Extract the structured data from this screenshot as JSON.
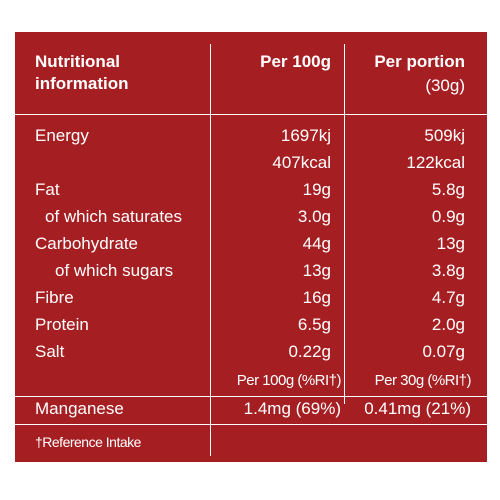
{
  "header": {
    "col1_line1": "Nutritional",
    "col1_line2": "information",
    "col2": "Per 100g",
    "col3_line1": "Per portion",
    "col3_line2": "(30g)"
  },
  "rows": [
    {
      "label": "Energy",
      "per100": "1697kj",
      "portion": "509kj"
    },
    {
      "label": "",
      "per100": "407kcal",
      "portion": "122kcal"
    },
    {
      "label": "Fat",
      "per100": "19g",
      "portion": "5.8g"
    },
    {
      "label": "of which saturates",
      "per100": "3.0g",
      "portion": "0.9g"
    },
    {
      "label": "Carbohydrate",
      "per100": "44g",
      "portion": "13g"
    },
    {
      "label": "of which sugars",
      "per100": "13g",
      "portion": "3.8g"
    },
    {
      "label": "Fibre",
      "per100": "16g",
      "portion": "4.7g"
    },
    {
      "label": "Protein",
      "per100": "6.5g",
      "portion": "2.0g"
    },
    {
      "label": "Salt",
      "per100": "0.22g",
      "portion": "0.07g"
    }
  ],
  "ri_header": {
    "per100": "Per 100g (%RI†)",
    "portion": "Per 30g (%RI†)"
  },
  "manganese": {
    "label": "Manganese",
    "per100": "1.4mg (69%)",
    "portion": "0.41mg (21%)"
  },
  "footnote": "†Reference Intake",
  "colors": {
    "panel": "#a51e22",
    "text": "#ffffff"
  }
}
